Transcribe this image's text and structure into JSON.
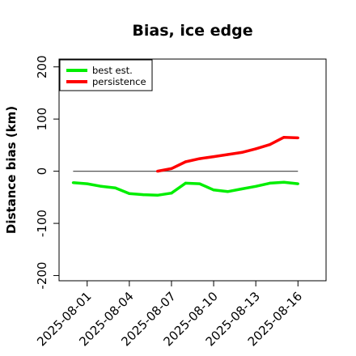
{
  "chart_data": {
    "type": "line",
    "title": "Bias, ice edge",
    "xlabel": "",
    "ylabel": "Distance bias (km)",
    "xlim": [
      "2025-07-30",
      "2025-08-18"
    ],
    "ylim": [
      -210,
      215
    ],
    "x_ticks": [
      "2025-08-01",
      "2025-08-04",
      "2025-08-07",
      "2025-08-10",
      "2025-08-13",
      "2025-08-16"
    ],
    "y_ticks": [
      -200,
      -100,
      0,
      100,
      200
    ],
    "y_tick_labels": [
      "-200",
      "-100",
      "0",
      "100",
      "200"
    ],
    "reference_line": {
      "y": 0,
      "from": "2025-07-31",
      "to": "2025-08-16",
      "color": "#555555"
    },
    "legend": {
      "position": "top-left",
      "entries": [
        "best est.",
        "persistence"
      ]
    },
    "series": [
      {
        "name": "best est.",
        "color": "#00ee00",
        "x": [
          "2025-07-31",
          "2025-08-01",
          "2025-08-02",
          "2025-08-03",
          "2025-08-04",
          "2025-08-05",
          "2025-08-06",
          "2025-08-07",
          "2025-08-08",
          "2025-08-09",
          "2025-08-10",
          "2025-08-11",
          "2025-08-12",
          "2025-08-13",
          "2025-08-14",
          "2025-08-15",
          "2025-08-16"
        ],
        "values": [
          -22,
          -24,
          -29,
          -32,
          -43,
          -45,
          -46,
          -42,
          -23,
          -24,
          -36,
          -39,
          -34,
          -29,
          -23,
          -21,
          -24
        ]
      },
      {
        "name": "persistence",
        "color": "#ff0000",
        "x": [
          "2025-08-06",
          "2025-08-07",
          "2025-08-08",
          "2025-08-09",
          "2025-08-10",
          "2025-08-11",
          "2025-08-12",
          "2025-08-13",
          "2025-08-14",
          "2025-08-15",
          "2025-08-16"
        ],
        "values": [
          0,
          5,
          18,
          24,
          28,
          32,
          36,
          43,
          51,
          65,
          64
        ]
      }
    ]
  }
}
